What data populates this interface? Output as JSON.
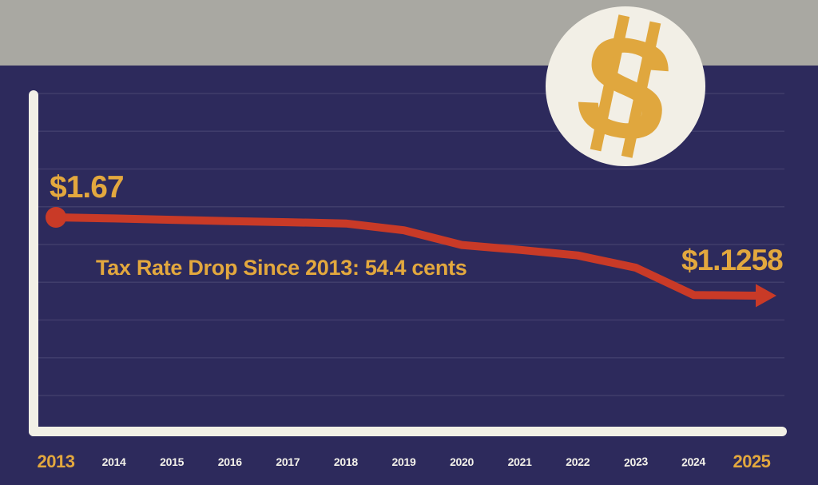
{
  "page": {
    "background_color": "#2d2a5c",
    "top_band_color": "#a9a8a2"
  },
  "badge": {
    "icon": "dollar-sign-icon",
    "symbol": "$",
    "circle_color": "#f2efe6",
    "symbol_color": "#e0a73e"
  },
  "chart_data": {
    "type": "line",
    "title": "Tax Rate Drop Since 2013: 54.4 cents",
    "x": [
      2013,
      2014,
      2015,
      2016,
      2017,
      2018,
      2019,
      2020,
      2021,
      2022,
      2023,
      2024,
      2025
    ],
    "x_tick_labels": [
      "2013",
      "2014",
      "2015",
      "2016",
      "2017",
      "2018",
      "2019",
      "2020",
      "2021",
      "2022",
      "2023",
      "2024",
      "2025"
    ],
    "highlighted_ticks": [
      "2013",
      "2025"
    ],
    "series": [
      {
        "name": "Tax rate (dollars)",
        "values": [
          1.67,
          1.662,
          1.653,
          1.644,
          1.636,
          1.627,
          1.58,
          1.478,
          1.444,
          1.405,
          1.32,
          1.13,
          1.1258
        ]
      }
    ],
    "annotations": {
      "start_label": "$1.67",
      "end_label": "$1.1258"
    },
    "grid": true,
    "gridline_count": 9,
    "legend": "none",
    "styles": {
      "line_color": "#c93a27",
      "accent_gold": "#e3a83e",
      "axis_color": "#f2f0e6",
      "tick_label_color": "#f3f1ea",
      "gridline_color": "rgba(238,238,248,0.10)"
    }
  }
}
